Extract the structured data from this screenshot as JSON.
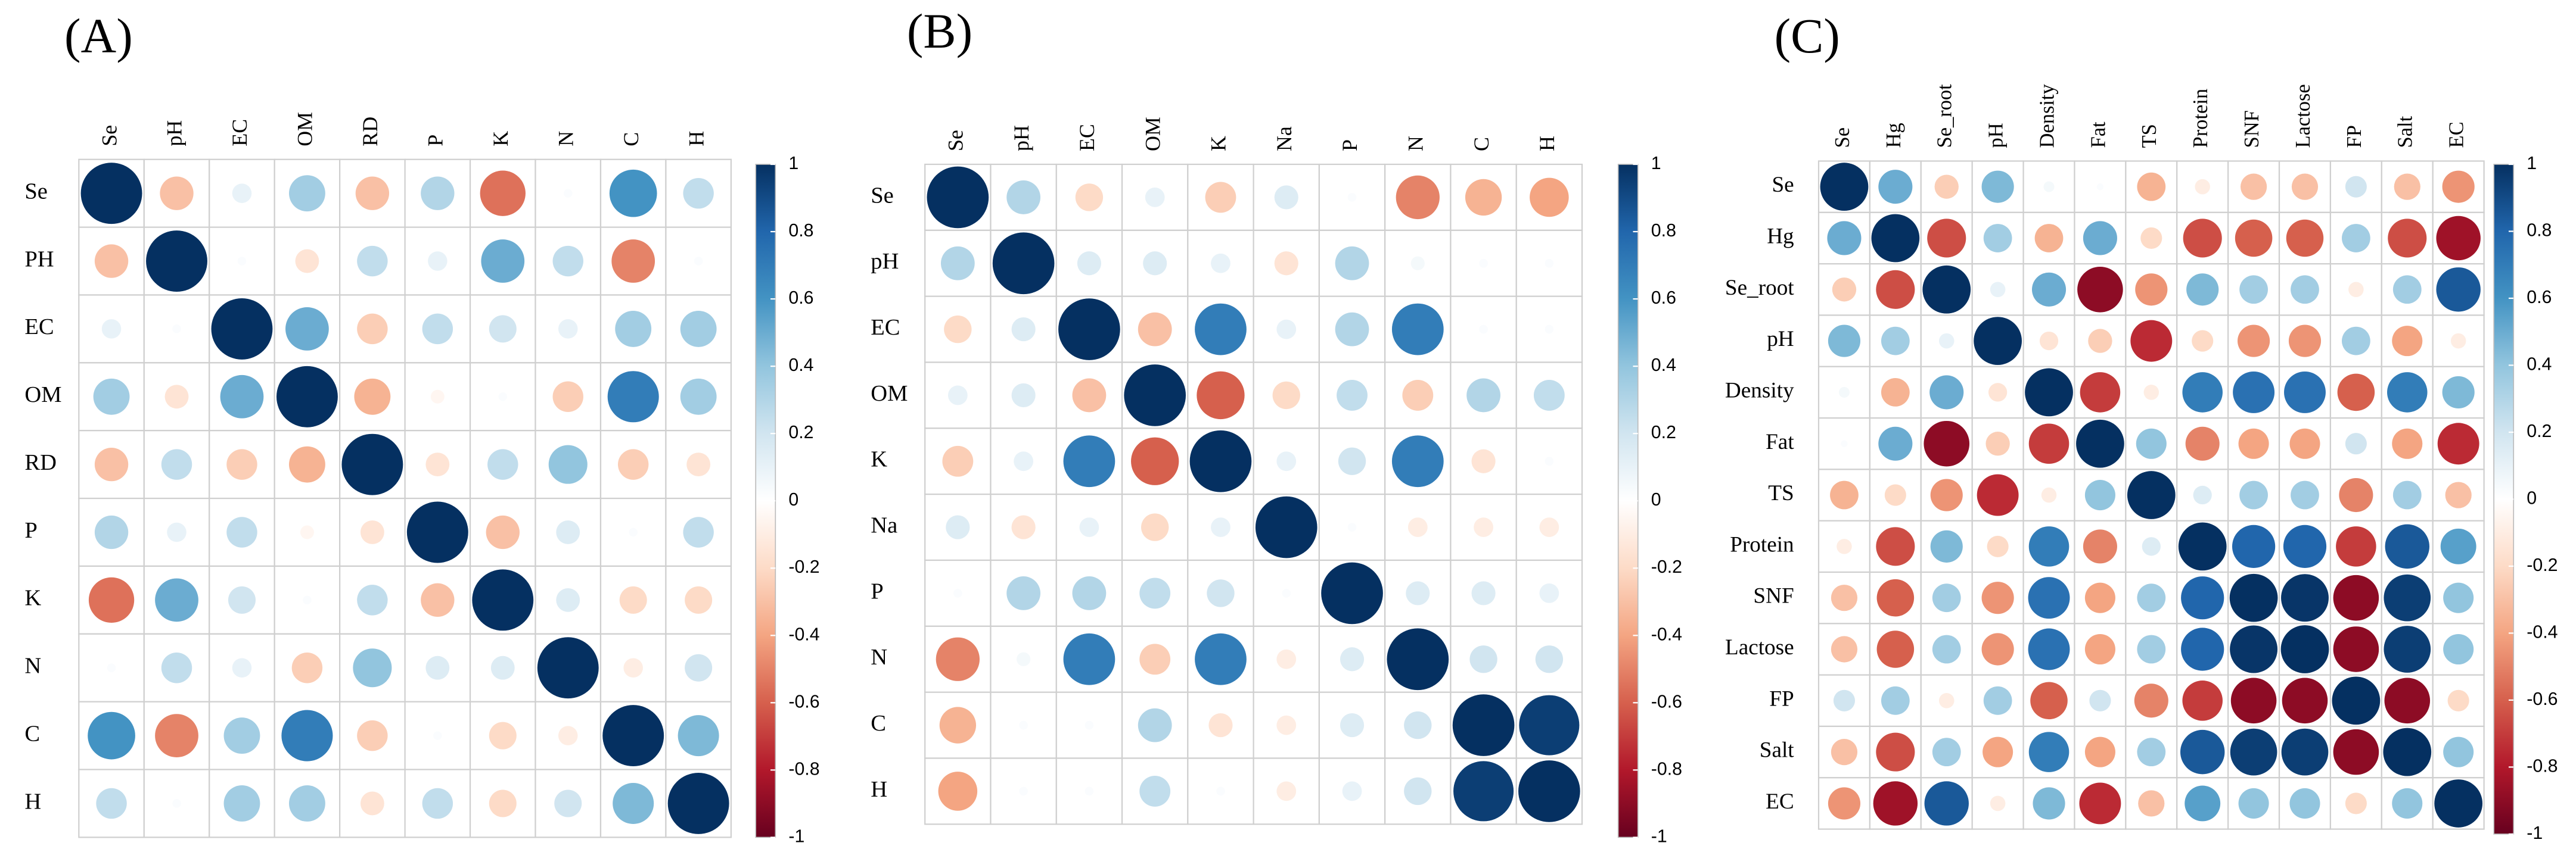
{
  "chart_data": [
    {
      "type": "corrplot",
      "title": "(A)",
      "x": [
        "Se",
        "pH",
        "EC",
        "OM",
        "RD",
        "P",
        "K",
        "N",
        "C",
        "H"
      ],
      "y": [
        "Se",
        "PH",
        "EC",
        "OM",
        "RD",
        "P",
        "K",
        "N",
        "C",
        "H"
      ],
      "values": [
        [
          1,
          -0.3,
          0.1,
          0.35,
          -0.3,
          0.3,
          -0.55,
          0.02,
          0.6,
          0.25
        ],
        [
          -0.3,
          1,
          0.02,
          -0.15,
          0.25,
          0.1,
          0.5,
          0.25,
          -0.5,
          0.02
        ],
        [
          0.1,
          0.02,
          1,
          0.5,
          -0.25,
          0.25,
          0.2,
          0.1,
          0.35,
          0.35
        ],
        [
          0.35,
          -0.15,
          0.5,
          1,
          -0.35,
          -0.05,
          0.02,
          -0.25,
          0.7,
          0.35
        ],
        [
          -0.3,
          0.25,
          -0.25,
          -0.35,
          1,
          -0.15,
          0.25,
          0.4,
          -0.25,
          -0.15
        ],
        [
          0.3,
          0.1,
          0.25,
          -0.05,
          -0.15,
          1,
          -0.3,
          0.15,
          0.02,
          0.25
        ],
        [
          -0.55,
          0.5,
          0.2,
          0.02,
          0.25,
          -0.3,
          1,
          0.15,
          -0.2,
          -0.2
        ],
        [
          0.02,
          0.25,
          0.1,
          -0.25,
          0.4,
          0.15,
          0.15,
          1,
          -0.1,
          0.2
        ],
        [
          0.6,
          -0.5,
          0.35,
          0.7,
          -0.25,
          0.02,
          -0.2,
          -0.1,
          1,
          0.45
        ],
        [
          0.25,
          0.02,
          0.35,
          0.35,
          -0.15,
          0.25,
          -0.2,
          0.2,
          0.45,
          1
        ]
      ],
      "clim": [
        -1,
        1
      ],
      "cticks": [
        1,
        0.8,
        0.6,
        0.4,
        0.2,
        0,
        -0.2,
        -0.4,
        -0.6,
        -0.8,
        -1
      ]
    },
    {
      "type": "corrplot",
      "title": "(B)",
      "x": [
        "Se",
        "pH",
        "EC",
        "OM",
        "K",
        "Na",
        "P",
        "N",
        "C",
        "H"
      ],
      "y": [
        "Se",
        "pH",
        "EC",
        "OM",
        "K",
        "Na",
        "P",
        "N",
        "C",
        "H"
      ],
      "values": [
        [
          1,
          0.3,
          -0.2,
          0.1,
          -0.25,
          0.15,
          0.02,
          -0.5,
          -0.35,
          -0.4
        ],
        [
          0.3,
          1,
          0.15,
          0.15,
          0.1,
          -0.15,
          0.3,
          0.05,
          0.02,
          0.02
        ],
        [
          -0.2,
          0.15,
          1,
          -0.3,
          0.7,
          0.1,
          0.3,
          0.7,
          0.02,
          0.02
        ],
        [
          0.1,
          0.15,
          -0.3,
          1,
          -0.6,
          -0.2,
          0.25,
          -0.25,
          0.3,
          0.25
        ],
        [
          -0.25,
          0.1,
          0.7,
          -0.6,
          1,
          0.1,
          0.2,
          0.7,
          -0.15,
          0.02
        ],
        [
          0.15,
          -0.15,
          0.1,
          -0.2,
          0.1,
          1,
          0.02,
          -0.1,
          -0.1,
          -0.1
        ],
        [
          0.02,
          0.3,
          0.3,
          0.25,
          0.2,
          0.02,
          1,
          0.15,
          0.15,
          0.1
        ],
        [
          -0.5,
          0.05,
          0.7,
          -0.25,
          0.7,
          -0.1,
          0.15,
          1,
          0.2,
          0.2
        ],
        [
          -0.35,
          0.02,
          0.02,
          0.3,
          -0.15,
          -0.1,
          0.15,
          0.2,
          1,
          0.95
        ],
        [
          -0.4,
          0.02,
          0.02,
          0.25,
          0.02,
          -0.1,
          0.1,
          0.2,
          0.95,
          1
        ]
      ],
      "clim": [
        -1,
        1
      ],
      "cticks": [
        1,
        0.8,
        0.6,
        0.4,
        0.2,
        0,
        -0.2,
        -0.4,
        -0.6,
        -0.8,
        -1
      ]
    },
    {
      "type": "corrplot",
      "title": "(C)",
      "x": [
        "Se",
        "Hg",
        "Se_root",
        "pH",
        "Density",
        "Fat",
        "TS",
        "Protein",
        "SNF",
        "Lactose",
        "FP",
        "Salt",
        "EC"
      ],
      "y": [
        "Se",
        "Hg",
        "Se_root",
        "pH",
        "Density",
        "Fat",
        "TS",
        "Protein",
        "SNF",
        "Lactose",
        "FP",
        "Salt",
        "EC"
      ],
      "values": [
        [
          1,
          0.5,
          -0.25,
          0.45,
          0.05,
          0.02,
          -0.35,
          -0.1,
          -0.3,
          -0.3,
          0.2,
          -0.3,
          -0.45
        ],
        [
          0.5,
          1,
          -0.65,
          0.35,
          -0.35,
          0.5,
          -0.2,
          -0.65,
          -0.6,
          -0.6,
          0.35,
          -0.65,
          -0.85
        ],
        [
          -0.25,
          -0.65,
          1,
          0.1,
          0.5,
          -0.9,
          -0.45,
          0.45,
          0.35,
          0.35,
          -0.1,
          0.35,
          0.85
        ],
        [
          0.45,
          0.35,
          0.1,
          1,
          -0.15,
          -0.25,
          -0.75,
          -0.2,
          -0.45,
          -0.45,
          0.35,
          -0.4,
          -0.1
        ],
        [
          0.05,
          -0.35,
          0.5,
          -0.15,
          1,
          -0.7,
          -0.1,
          0.7,
          0.75,
          0.75,
          -0.6,
          0.7,
          0.45
        ],
        [
          0.02,
          0.5,
          -0.9,
          -0.25,
          -0.7,
          1,
          0.4,
          -0.5,
          -0.4,
          -0.4,
          0.2,
          -0.4,
          -0.75
        ],
        [
          -0.35,
          -0.2,
          -0.45,
          -0.75,
          -0.1,
          0.4,
          1,
          0.15,
          0.35,
          0.35,
          -0.5,
          0.35,
          -0.3
        ],
        [
          -0.1,
          -0.65,
          0.45,
          -0.2,
          0.7,
          -0.5,
          0.15,
          1,
          0.8,
          0.8,
          -0.7,
          0.85,
          0.55
        ],
        [
          -0.3,
          -0.6,
          0.35,
          -0.45,
          0.75,
          -0.4,
          0.35,
          0.8,
          1,
          0.98,
          -0.9,
          0.95,
          0.4
        ],
        [
          -0.3,
          -0.6,
          0.35,
          -0.45,
          0.75,
          -0.4,
          0.35,
          0.8,
          0.98,
          1,
          -0.9,
          0.95,
          0.4
        ],
        [
          0.2,
          0.35,
          -0.1,
          0.35,
          -0.6,
          0.2,
          -0.5,
          -0.7,
          -0.9,
          -0.9,
          1,
          -0.9,
          -0.2
        ],
        [
          -0.3,
          -0.65,
          0.35,
          -0.4,
          0.7,
          -0.4,
          0.35,
          0.85,
          0.95,
          0.95,
          -0.9,
          1,
          0.4
        ],
        [
          -0.45,
          -0.85,
          0.85,
          -0.1,
          0.45,
          -0.75,
          -0.3,
          0.55,
          0.4,
          0.4,
          -0.2,
          0.4,
          1
        ]
      ],
      "clim": [
        -1,
        1
      ],
      "cticks": [
        1,
        0.8,
        0.6,
        0.4,
        0.2,
        0,
        -0.2,
        -0.4,
        -0.6,
        -0.8,
        -1
      ]
    }
  ]
}
